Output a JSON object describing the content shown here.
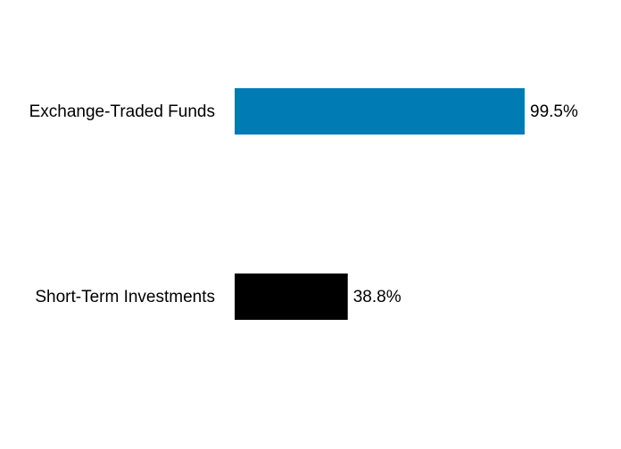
{
  "chart_data": {
    "type": "bar",
    "orientation": "horizontal",
    "categories": [
      "Exchange-Traded Funds",
      "Short-Term Investments"
    ],
    "values": [
      99.5,
      38.8
    ],
    "value_labels": [
      "99.5%",
      "38.8%"
    ],
    "colors": [
      "#007bb4",
      "#000000"
    ]
  }
}
